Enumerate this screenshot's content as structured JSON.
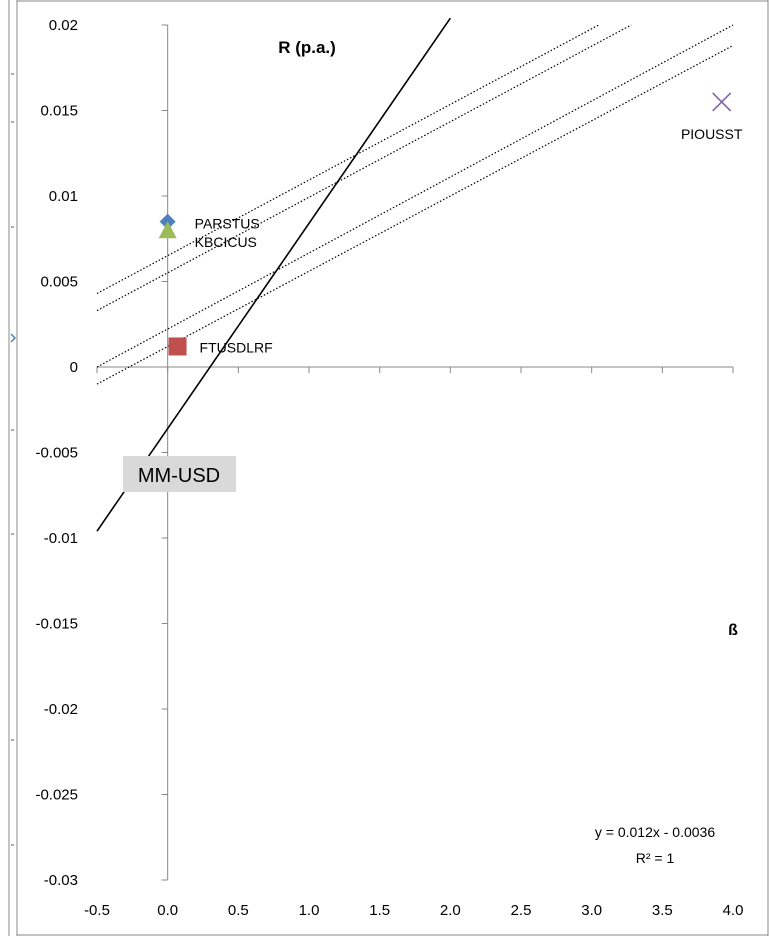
{
  "chart_data": {
    "type": "scatter",
    "title": "R (p.a.)",
    "xlabel": "ß",
    "ylabel": "",
    "xlim": [
      -0.5,
      4.0
    ],
    "ylim": [
      -0.03,
      0.02
    ],
    "x_ticks": [
      "-0.5",
      "0.0",
      "0.5",
      "1.0",
      "1.5",
      "2.0",
      "2.5",
      "3.0",
      "3.5",
      "4.0"
    ],
    "y_ticks": [
      "0.02",
      "0.015",
      "0.01",
      "0.005",
      "0",
      "-0.005",
      "-0.01",
      "-0.015",
      "-0.02",
      "-0.025",
      "-0.03"
    ],
    "points": [
      {
        "label": "PARSTUS",
        "x": 0.0,
        "y": 0.0085,
        "marker": "diamond",
        "color": "#4F81BD"
      },
      {
        "label": "KBCICUS",
        "x": 0.0,
        "y": 0.008,
        "marker": "triangle",
        "color": "#9BBB59"
      },
      {
        "label": "FTUSDLRF",
        "x": 0.07,
        "y": 0.0012,
        "marker": "square",
        "color": "#C0504D"
      },
      {
        "label": "PIOUSST",
        "x": 3.92,
        "y": 0.0155,
        "marker": "x",
        "color": "#8064A2"
      }
    ],
    "trendline": {
      "slope": 0.012,
      "intercept": -0.0036,
      "x_start": -0.5,
      "x_end": 2.0,
      "color": "#000000"
    },
    "dotted_lines": [
      {
        "x_start": -0.5,
        "y_start": 0.0043,
        "x_end": 3.05,
        "y_end": 0.02
      },
      {
        "x_start": -0.5,
        "y_start": 0.0033,
        "x_end": 3.28,
        "y_end": 0.02
      },
      {
        "x_start": -0.5,
        "y_start": 0.0,
        "x_end": 4.0,
        "y_end": 0.02
      },
      {
        "x_start": -0.5,
        "y_start": -0.001,
        "x_end": 4.0,
        "y_end": 0.0188
      }
    ],
    "equation": "y = 0.012x - 0.0036",
    "r_squared": "R² = 1",
    "annotation_box": "MM-USD",
    "legend": "none",
    "grid": false
  }
}
